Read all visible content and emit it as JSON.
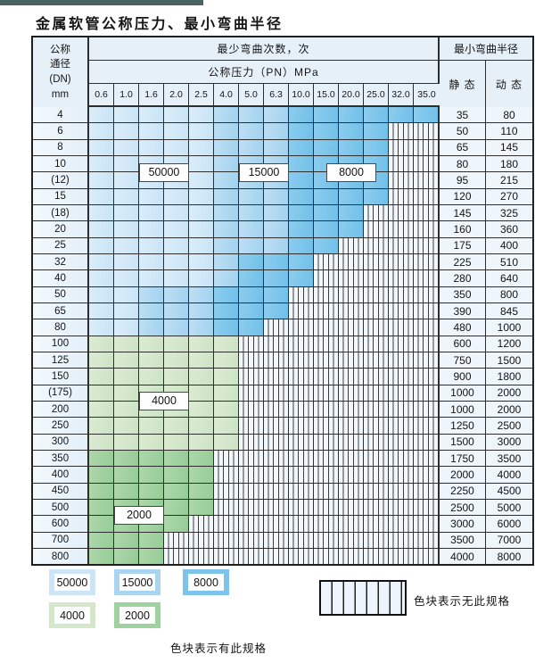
{
  "title": "金属软管公称压力、最小弯曲半径",
  "table": {
    "header": {
      "dn_lines": [
        "公称",
        "通径",
        "(DN)",
        "mm"
      ],
      "bend_cycles": "最少弯曲次数，次",
      "pressure": "公称压力（PN）MPa",
      "pressure_values": [
        "0.6",
        "1.0",
        "1.6",
        "2.0",
        "2.5",
        "4.0",
        "5.0",
        "6.3",
        "10.0",
        "15.0",
        "20.0",
        "25.0",
        "32.0",
        "35.0"
      ],
      "radius": "最小弯曲半径",
      "static": "静 态",
      "dynamic": "动 态"
    },
    "cell_code_meaning": {
      "b1": "50000",
      "b2": "15000",
      "b3": "8000",
      "g1": "4000",
      "g2": "2000",
      "x": "无此规格"
    },
    "rows": [
      {
        "dn": "4",
        "cells": [
          "b1",
          "b1",
          "b1",
          "b1",
          "b1",
          "b2",
          "b2",
          "b2",
          "b3",
          "b3",
          "b3",
          "b3",
          "b3",
          "b3"
        ],
        "static": "35",
        "dynamic": "80"
      },
      {
        "dn": "6",
        "cells": [
          "b1",
          "b1",
          "b1",
          "b1",
          "b1",
          "b2",
          "b2",
          "b2",
          "b3",
          "b3",
          "b3",
          "b3",
          "x",
          "x"
        ],
        "static": "50",
        "dynamic": "110"
      },
      {
        "dn": "8",
        "cells": [
          "b1",
          "b1",
          "b1",
          "b1",
          "b1",
          "b2",
          "b2",
          "b2",
          "b3",
          "b3",
          "b3",
          "b3",
          "x",
          "x"
        ],
        "static": "65",
        "dynamic": "145"
      },
      {
        "dn": "10",
        "cells": [
          "b1",
          "b1",
          "b1",
          "b1",
          "b1",
          "b2",
          "b2",
          "b2",
          "b3",
          "b3",
          "b3",
          "b3",
          "x",
          "x"
        ],
        "static": "80",
        "dynamic": "180"
      },
      {
        "dn": "(12)",
        "cells": [
          "b1",
          "b1",
          "b1",
          "b1",
          "b1",
          "b2",
          "b2",
          "b2",
          "b3",
          "b3",
          "b3",
          "b3",
          "x",
          "x"
        ],
        "static": "95",
        "dynamic": "215"
      },
      {
        "dn": "15",
        "cells": [
          "b1",
          "b1",
          "b1",
          "b1",
          "b1",
          "b2",
          "b2",
          "b2",
          "b3",
          "b3",
          "b3",
          "b3",
          "x",
          "x"
        ],
        "static": "120",
        "dynamic": "270"
      },
      {
        "dn": "(18)",
        "cells": [
          "b1",
          "b1",
          "b1",
          "b1",
          "b1",
          "b2",
          "b2",
          "b2",
          "b3",
          "b3",
          "b3",
          "x",
          "x",
          "x"
        ],
        "static": "145",
        "dynamic": "325"
      },
      {
        "dn": "20",
        "cells": [
          "b1",
          "b1",
          "b1",
          "b1",
          "b1",
          "b2",
          "b2",
          "b2",
          "b3",
          "b3",
          "b3",
          "x",
          "x",
          "x"
        ],
        "static": "160",
        "dynamic": "360"
      },
      {
        "dn": "25",
        "cells": [
          "b1",
          "b1",
          "b1",
          "b1",
          "b1",
          "b2",
          "b2",
          "b2",
          "b3",
          "b3",
          "x",
          "x",
          "x",
          "x"
        ],
        "static": "175",
        "dynamic": "400"
      },
      {
        "dn": "32",
        "cells": [
          "b1",
          "b1",
          "b1",
          "b1",
          "b1",
          "b2",
          "b3",
          "b3",
          "b3",
          "x",
          "x",
          "x",
          "x",
          "x"
        ],
        "static": "225",
        "dynamic": "510"
      },
      {
        "dn": "40",
        "cells": [
          "b1",
          "b1",
          "b1",
          "b1",
          "b1",
          "b2",
          "b3",
          "b3",
          "b3",
          "x",
          "x",
          "x",
          "x",
          "x"
        ],
        "static": "280",
        "dynamic": "640"
      },
      {
        "dn": "50",
        "cells": [
          "b1",
          "b1",
          "b2",
          "b2",
          "b2",
          "b3",
          "b3",
          "b3",
          "x",
          "x",
          "x",
          "x",
          "x",
          "x"
        ],
        "static": "350",
        "dynamic": "800"
      },
      {
        "dn": "65",
        "cells": [
          "b1",
          "b1",
          "b2",
          "b2",
          "b2",
          "b3",
          "b3",
          "b3",
          "x",
          "x",
          "x",
          "x",
          "x",
          "x"
        ],
        "static": "390",
        "dynamic": "845"
      },
      {
        "dn": "80",
        "cells": [
          "b1",
          "b1",
          "b2",
          "b2",
          "b2",
          "b3",
          "b3",
          "x",
          "x",
          "x",
          "x",
          "x",
          "x",
          "x"
        ],
        "static": "480",
        "dynamic": "1000"
      },
      {
        "dn": "100",
        "cells": [
          "g1",
          "g1",
          "g1",
          "g1",
          "g1",
          "g1",
          "x",
          "x",
          "x",
          "x",
          "x",
          "x",
          "x",
          "x"
        ],
        "static": "600",
        "dynamic": "1200"
      },
      {
        "dn": "125",
        "cells": [
          "g1",
          "g1",
          "g1",
          "g1",
          "g1",
          "g1",
          "x",
          "x",
          "x",
          "x",
          "x",
          "x",
          "x",
          "x"
        ],
        "static": "750",
        "dynamic": "1500"
      },
      {
        "dn": "150",
        "cells": [
          "g1",
          "g1",
          "g1",
          "g1",
          "g1",
          "g1",
          "x",
          "x",
          "x",
          "x",
          "x",
          "x",
          "x",
          "x"
        ],
        "static": "900",
        "dynamic": "1800"
      },
      {
        "dn": "(175)",
        "cells": [
          "g1",
          "g1",
          "g1",
          "g1",
          "g1",
          "g1",
          "x",
          "x",
          "x",
          "x",
          "x",
          "x",
          "x",
          "x"
        ],
        "static": "1000",
        "dynamic": "2000"
      },
      {
        "dn": "200",
        "cells": [
          "g1",
          "g1",
          "g1",
          "g1",
          "g1",
          "g1",
          "x",
          "x",
          "x",
          "x",
          "x",
          "x",
          "x",
          "x"
        ],
        "static": "1000",
        "dynamic": "2000"
      },
      {
        "dn": "250",
        "cells": [
          "g1",
          "g1",
          "g1",
          "g1",
          "g1",
          "g1",
          "x",
          "x",
          "x",
          "x",
          "x",
          "x",
          "x",
          "x"
        ],
        "static": "1250",
        "dynamic": "2500"
      },
      {
        "dn": "300",
        "cells": [
          "g1",
          "g1",
          "g1",
          "g1",
          "g1",
          "g1",
          "x",
          "x",
          "x",
          "x",
          "x",
          "x",
          "x",
          "x"
        ],
        "static": "1500",
        "dynamic": "3000"
      },
      {
        "dn": "350",
        "cells": [
          "g2",
          "g2",
          "g2",
          "g2",
          "g2",
          "x",
          "x",
          "x",
          "x",
          "x",
          "x",
          "x",
          "x",
          "x"
        ],
        "static": "1750",
        "dynamic": "3500"
      },
      {
        "dn": "400",
        "cells": [
          "g2",
          "g2",
          "g2",
          "g2",
          "g2",
          "x",
          "x",
          "x",
          "x",
          "x",
          "x",
          "x",
          "x",
          "x"
        ],
        "static": "2000",
        "dynamic": "4000"
      },
      {
        "dn": "450",
        "cells": [
          "g2",
          "g2",
          "g2",
          "g2",
          "g2",
          "x",
          "x",
          "x",
          "x",
          "x",
          "x",
          "x",
          "x",
          "x"
        ],
        "static": "2250",
        "dynamic": "4500"
      },
      {
        "dn": "500",
        "cells": [
          "g2",
          "g2",
          "g2",
          "g2",
          "g2",
          "x",
          "x",
          "x",
          "x",
          "x",
          "x",
          "x",
          "x",
          "x"
        ],
        "static": "2500",
        "dynamic": "5000"
      },
      {
        "dn": "600",
        "cells": [
          "g2",
          "g2",
          "g2",
          "g2",
          "x",
          "x",
          "x",
          "x",
          "x",
          "x",
          "x",
          "x",
          "x",
          "x"
        ],
        "static": "3000",
        "dynamic": "6000"
      },
      {
        "dn": "700",
        "cells": [
          "g2",
          "g2",
          "g2",
          "x",
          "x",
          "x",
          "x",
          "x",
          "x",
          "x",
          "x",
          "x",
          "x",
          "x"
        ],
        "static": "3500",
        "dynamic": "7000"
      },
      {
        "dn": "800",
        "cells": [
          "g2",
          "g2",
          "g2",
          "x",
          "x",
          "x",
          "x",
          "x",
          "x",
          "x",
          "x",
          "x",
          "x",
          "x"
        ],
        "static": "4000",
        "dynamic": "8000"
      }
    ],
    "overlays": [
      {
        "text": "50000",
        "between_rows": [
          "10",
          "(12)"
        ],
        "cols": [
          "1.6",
          "2.0"
        ]
      },
      {
        "text": "15000",
        "between_rows": [
          "10",
          "(12)"
        ],
        "cols": [
          "5.0",
          "6.3"
        ]
      },
      {
        "text": "8000",
        "between_rows": [
          "10",
          "(12)"
        ],
        "cols": [
          "15.0",
          "25.0"
        ]
      },
      {
        "text": "4000",
        "between_rows": [
          "(175)",
          "200"
        ],
        "cols": [
          "1.6",
          "2.0"
        ]
      },
      {
        "text": "2000",
        "between_rows": [
          "500",
          "600"
        ],
        "cols": [
          "1.0",
          "1.6"
        ]
      }
    ]
  },
  "legend": {
    "items": [
      {
        "value": "50000",
        "code": "b1"
      },
      {
        "value": "15000",
        "code": "b2"
      },
      {
        "value": "8000",
        "code": "b3"
      },
      {
        "value": "4000",
        "code": "g1"
      },
      {
        "value": "2000",
        "code": "g2"
      }
    ],
    "available_label": "色块表示有此规格",
    "unavailable_label": "色块表示无此规格"
  },
  "colors": {
    "b1": "#cde6f7",
    "b2": "#a9d5f0",
    "b3": "#7cc4e9",
    "g1": "#d4e7ca",
    "g2": "#9ed29e",
    "stripe_bg": "#f2f7fc",
    "grid": "#2e2e2e",
    "accent_bar": "#4a6260",
    "header_bg": "#e6f0f9",
    "label_bg": "#eaf3fb",
    "value_bg": "#eef5fb"
  }
}
